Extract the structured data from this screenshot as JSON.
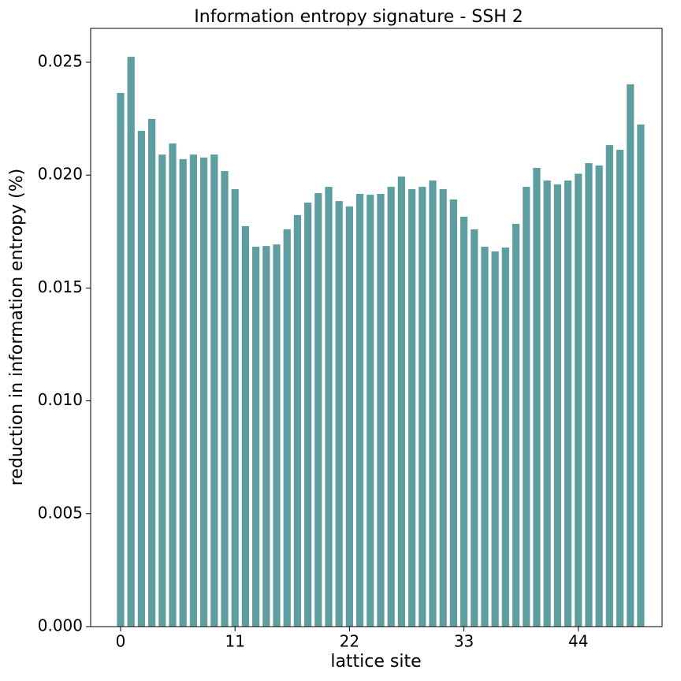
{
  "chart_data": {
    "type": "bar",
    "title": "Information entropy signature - SSH 2",
    "xlabel": "lattice site",
    "ylabel": "reduction in information entropy (%)",
    "color": "#5f9ea0",
    "x": [
      0,
      1,
      2,
      3,
      4,
      5,
      6,
      7,
      8,
      9,
      10,
      11,
      12,
      13,
      14,
      15,
      16,
      17,
      18,
      19,
      20,
      21,
      22,
      23,
      24,
      25,
      26,
      27,
      28,
      29,
      30,
      31,
      32,
      33,
      34,
      35,
      36,
      37,
      38,
      39,
      40,
      41,
      42,
      43,
      44,
      45,
      46,
      47,
      48,
      49,
      50
    ],
    "values": [
      0.02364,
      0.02524,
      0.02196,
      0.02249,
      0.02091,
      0.0214,
      0.02071,
      0.02091,
      0.02078,
      0.02091,
      0.02018,
      0.01938,
      0.01774,
      0.01683,
      0.01686,
      0.01693,
      0.0176,
      0.01823,
      0.01878,
      0.0192,
      0.01948,
      0.01885,
      0.01861,
      0.01917,
      0.01913,
      0.01917,
      0.01948,
      0.01994,
      0.01938,
      0.01948,
      0.01976,
      0.01938,
      0.01892,
      0.01816,
      0.0176,
      0.01683,
      0.01662,
      0.01679,
      0.01784,
      0.01948,
      0.02032,
      0.01976,
      0.01959,
      0.01976,
      0.02006,
      0.02053,
      0.02043,
      0.02133,
      0.02112,
      0.02402,
      0.02224
    ],
    "xlim": [
      -2.88,
      52.05
    ],
    "xticks": [
      0,
      11,
      22,
      33,
      44
    ],
    "ylim": [
      0,
      0.0265
    ],
    "yticks": [
      {
        "value": 0,
        "label": "0.000"
      },
      {
        "value": 0.005,
        "label": "0.005"
      },
      {
        "value": 0.01,
        "label": "0.010"
      },
      {
        "value": 0.015,
        "label": "0.015"
      },
      {
        "value": 0.02,
        "label": "0.020"
      },
      {
        "value": 0.025,
        "label": "0.025"
      }
    ],
    "grid": false
  }
}
